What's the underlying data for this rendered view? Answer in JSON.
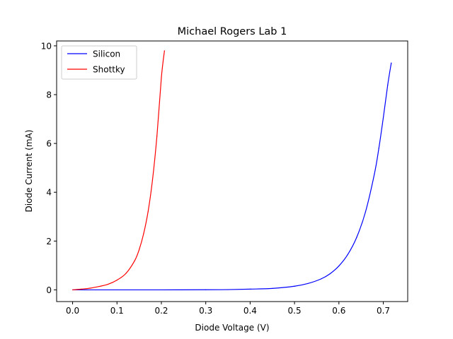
{
  "chart_data": {
    "type": "line",
    "title": "Michael Rogers Lab 1",
    "xlabel": "Diode Voltage (V)",
    "ylabel": "Diode Current (mA)",
    "xlim": [
      -0.036,
      0.755
    ],
    "ylim": [
      -0.48,
      10.2
    ],
    "xticks": [
      0.0,
      0.1,
      0.2,
      0.3,
      0.4,
      0.5,
      0.6,
      0.7
    ],
    "xtick_labels": [
      "0.0",
      "0.1",
      "0.2",
      "0.3",
      "0.4",
      "0.5",
      "0.6",
      "0.7"
    ],
    "yticks": [
      0,
      2,
      4,
      6,
      8,
      10
    ],
    "ytick_labels": [
      "0",
      "2",
      "4",
      "6",
      "8",
      "10"
    ],
    "grid": false,
    "legend_position": "top-left",
    "series": [
      {
        "name": "Silicon",
        "color": "#0000ff",
        "x": [
          0.0,
          0.1,
          0.2,
          0.3,
          0.35,
          0.4,
          0.45,
          0.5,
          0.53,
          0.56,
          0.58,
          0.6,
          0.62,
          0.64,
          0.66,
          0.68,
          0.69,
          0.7,
          0.71,
          0.718
        ],
        "y": [
          0.0,
          0.0,
          0.0,
          0.005,
          0.01,
          0.03,
          0.06,
          0.15,
          0.26,
          0.45,
          0.66,
          0.98,
          1.45,
          2.15,
          3.2,
          4.75,
          5.8,
          7.05,
          8.4,
          9.3
        ]
      },
      {
        "name": "Shottky",
        "color": "#ff0000",
        "x": [
          0.0,
          0.02,
          0.04,
          0.06,
          0.08,
          0.1,
          0.12,
          0.14,
          0.15,
          0.16,
          0.17,
          0.18,
          0.19,
          0.2,
          0.207
        ],
        "y": [
          0.0,
          0.03,
          0.07,
          0.14,
          0.23,
          0.4,
          0.67,
          1.2,
          1.65,
          2.3,
          3.2,
          4.5,
          6.3,
          8.7,
          9.8
        ]
      }
    ]
  }
}
